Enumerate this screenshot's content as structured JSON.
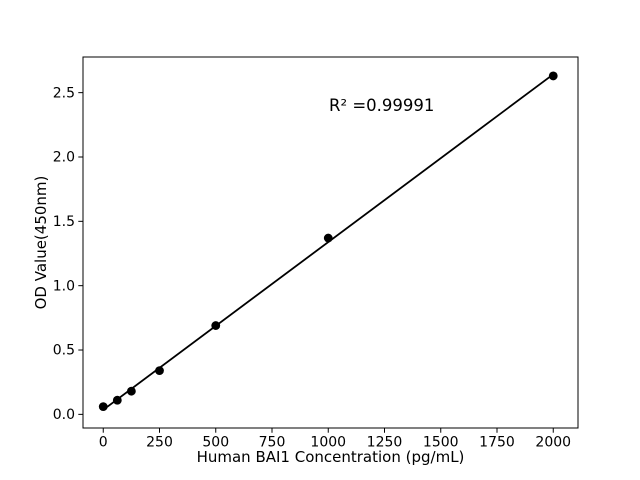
{
  "chart_data": {
    "type": "scatter",
    "title": "",
    "xlabel": "Human BAI1 Concentration (pg/mL)",
    "ylabel": "OD Value(450nm)",
    "x": [
      0,
      62.5,
      125,
      250,
      500,
      1000,
      2000
    ],
    "y": [
      0.06,
      0.11,
      0.18,
      0.34,
      0.69,
      1.37,
      2.63
    ],
    "xlim": [
      -90,
      2110
    ],
    "ylim": [
      -0.106,
      2.777
    ],
    "x_ticks": [
      0,
      250,
      500,
      750,
      1000,
      1250,
      1500,
      1750,
      2000
    ],
    "x_tick_labels": [
      "0",
      "250",
      "500",
      "750",
      "1000",
      "1250",
      "1500",
      "1750",
      "2000"
    ],
    "y_ticks": [
      0.0,
      0.5,
      1.0,
      1.5,
      2.0,
      2.5
    ],
    "y_tick_labels": [
      "0.0",
      "0.5",
      "1.0",
      "1.5",
      "2.0",
      "2.5"
    ],
    "grid": false,
    "legend": null,
    "annotation": {
      "text": "R² =0.99991"
    },
    "fit_line": {
      "slope": 0.0013035,
      "intercept": 0.0354,
      "x_start": 0,
      "x_end": 2000
    },
    "marker_color": "#000000",
    "line_color": "#000000",
    "axis_color": "#000000",
    "background": "#ffffff"
  }
}
